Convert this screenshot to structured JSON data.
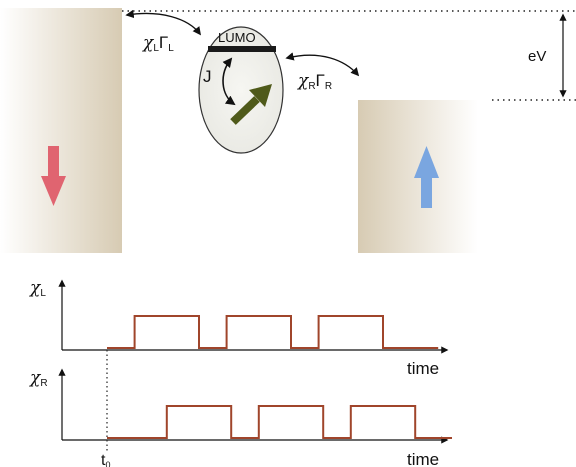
{
  "orbital_label": "LUMO",
  "exchange_label": "J",
  "bias_label": "eV",
  "coupling_left": {
    "chi": "χ",
    "sub": "L",
    "gamma": "Γ",
    "gsub": "L"
  },
  "coupling_right": {
    "chi": "χ",
    "sub": "R",
    "gamma": "Γ",
    "gsub": "R"
  },
  "timeline_left": {
    "chi": "χ",
    "sub": "L",
    "axis_label": "time"
  },
  "timeline_right": {
    "chi": "χ",
    "sub": "R",
    "axis_label": "time"
  },
  "t0_label": {
    "t": "t",
    "sub": "0"
  },
  "colors": {
    "left_spin": "#e06470",
    "right_spin": "#7aa6e0",
    "molecule_spin": "#4f5a1a",
    "pulse": "#a0452b",
    "lead": "#d8ccb6"
  },
  "pulses": {
    "left": [
      [
        0,
        0
      ],
      [
        0.3,
        0
      ],
      [
        0.3,
        1
      ],
      [
        1.0,
        1
      ],
      [
        1.0,
        0
      ],
      [
        1.3,
        0
      ],
      [
        1.3,
        1
      ],
      [
        2.0,
        1
      ],
      [
        2.0,
        0
      ],
      [
        2.3,
        0
      ],
      [
        2.3,
        1
      ],
      [
        3.0,
        1
      ],
      [
        3.0,
        0
      ],
      [
        3.6,
        0
      ]
    ],
    "right": [
      [
        0,
        0
      ],
      [
        0.65,
        0
      ],
      [
        0.65,
        1
      ],
      [
        1.35,
        1
      ],
      [
        1.35,
        0
      ],
      [
        1.65,
        0
      ],
      [
        1.65,
        1
      ],
      [
        2.35,
        1
      ],
      [
        2.35,
        0
      ],
      [
        2.65,
        0
      ],
      [
        2.65,
        1
      ],
      [
        3.35,
        1
      ],
      [
        3.35,
        0
      ],
      [
        3.75,
        0
      ]
    ]
  }
}
